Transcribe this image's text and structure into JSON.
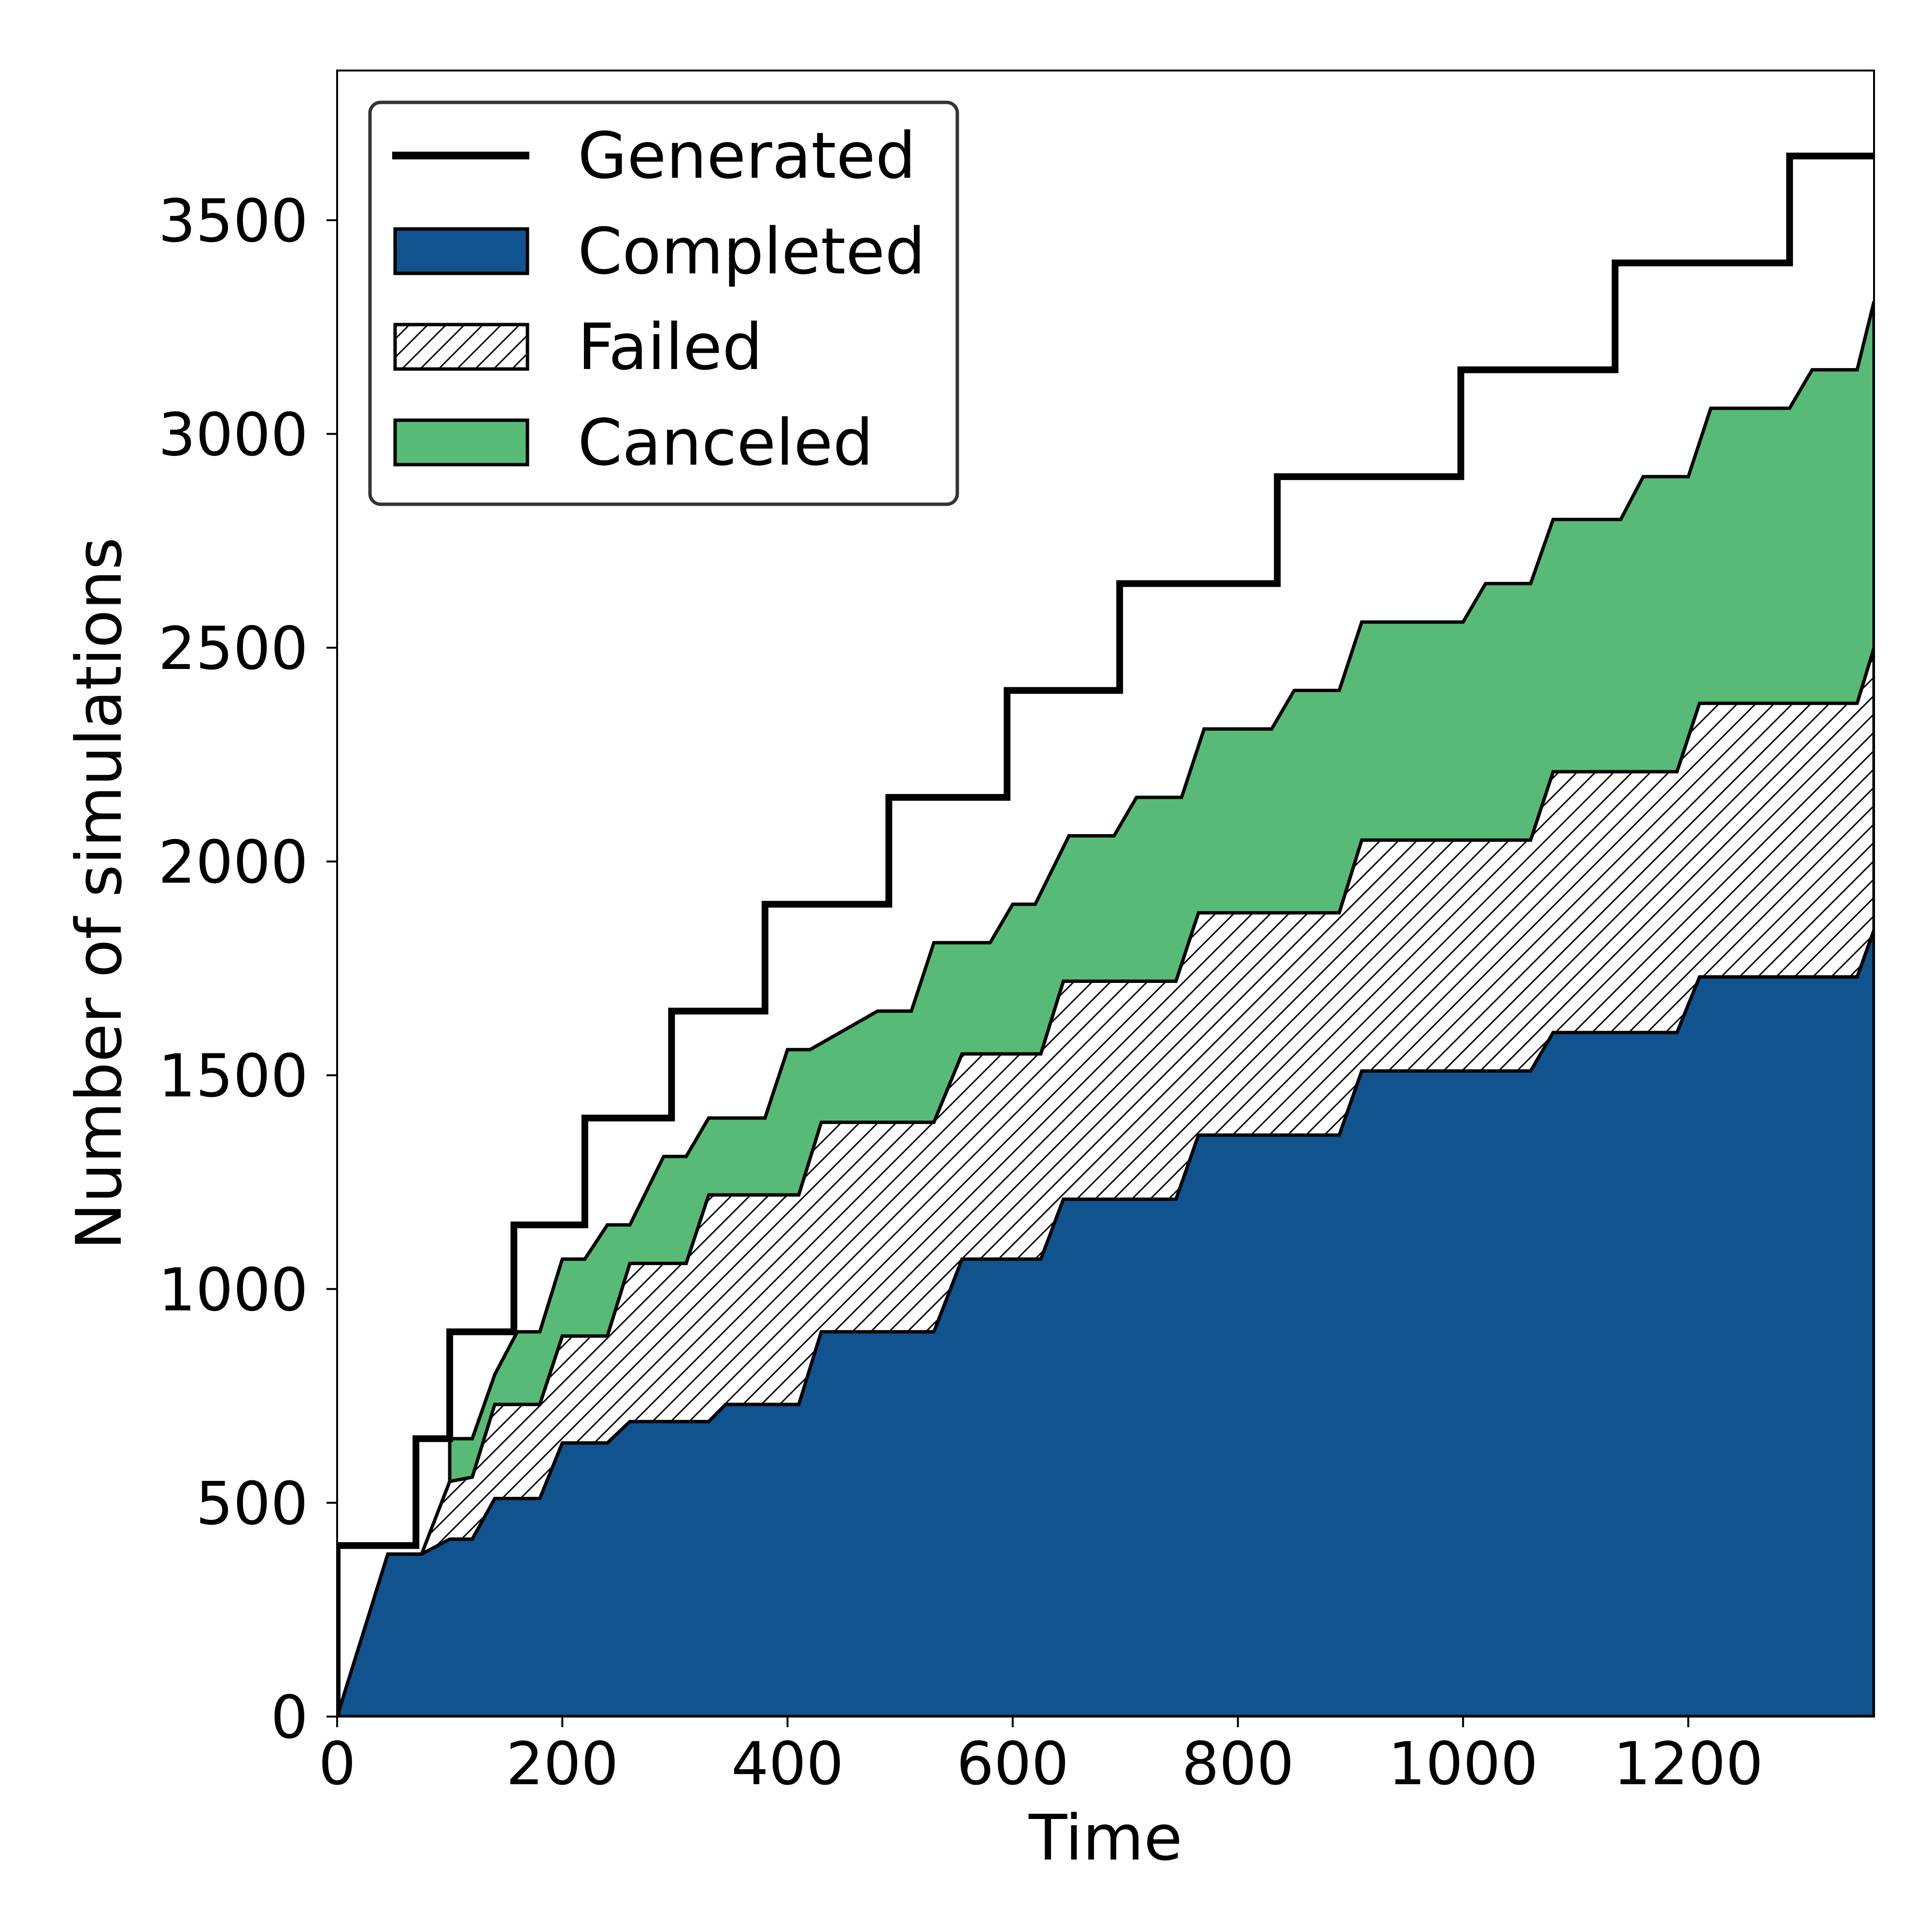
{
  "chart_data": {
    "type": "area",
    "xlabel": "Time",
    "ylabel": "Number of simulations",
    "xlim": [
      0,
      1365
    ],
    "ylim": [
      0,
      3850
    ],
    "xticks": [
      0,
      200,
      400,
      600,
      800,
      1000,
      1200
    ],
    "yticks": [
      0,
      500,
      1000,
      1500,
      2000,
      2500,
      3000,
      3500
    ],
    "grid": false,
    "legend_position": "top-left",
    "colors": {
      "generated": "#000000",
      "completed": "#10538f",
      "failed_hatch": "#000000",
      "canceled": "#57bb77"
    },
    "series": [
      {
        "name": "Generated",
        "style": "step-line",
        "x": [
          0,
          0,
          70,
          70,
          100,
          100,
          157,
          157,
          220,
          220,
          297,
          297,
          380,
          380,
          490,
          490,
          595,
          595,
          695,
          695,
          835,
          835,
          998,
          998,
          1135,
          1135,
          1290,
          1290,
          1365
        ],
        "y": [
          0,
          400,
          400,
          650,
          650,
          900,
          900,
          1150,
          1150,
          1400,
          1400,
          1650,
          1650,
          1900,
          1900,
          2150,
          2150,
          2400,
          2400,
          2650,
          2650,
          2900,
          2900,
          3150,
          3150,
          3400,
          3400,
          3650,
          3650
        ]
      },
      {
        "name": "Completed",
        "style": "stacked-area",
        "x": [
          0,
          45,
          75,
          100,
          120,
          140,
          180,
          200,
          240,
          260,
          330,
          345,
          410,
          430,
          530,
          555,
          625,
          645,
          745,
          765,
          890,
          910,
          1060,
          1080,
          1190,
          1210,
          1350,
          1365
        ],
        "y": [
          0,
          380,
          380,
          415,
          415,
          510,
          510,
          640,
          640,
          690,
          690,
          730,
          730,
          900,
          900,
          1070,
          1070,
          1210,
          1210,
          1360,
          1360,
          1510,
          1510,
          1600,
          1600,
          1730,
          1730,
          1840
        ]
      },
      {
        "name": "Failed",
        "style": "stacked-area-hatched",
        "x": [
          0,
          45,
          75,
          100,
          120,
          140,
          180,
          200,
          240,
          260,
          310,
          330,
          410,
          430,
          530,
          555,
          625,
          645,
          745,
          765,
          890,
          910,
          1060,
          1080,
          1190,
          1210,
          1350,
          1365
        ],
        "y": [
          0,
          380,
          380,
          550,
          560,
          730,
          730,
          890,
          890,
          1060,
          1060,
          1220,
          1220,
          1390,
          1390,
          1550,
          1550,
          1720,
          1720,
          1880,
          1880,
          2050,
          2050,
          2210,
          2210,
          2370,
          2370,
          2500
        ]
      },
      {
        "name": "Canceled",
        "style": "stacked-area",
        "x": [
          100,
          120,
          140,
          160,
          180,
          200,
          220,
          240,
          260,
          290,
          310,
          330,
          380,
          400,
          420,
          480,
          510,
          530,
          580,
          600,
          620,
          650,
          690,
          710,
          750,
          770,
          830,
          850,
          890,
          910,
          1000,
          1020,
          1060,
          1080,
          1140,
          1160,
          1200,
          1220,
          1290,
          1310,
          1350,
          1365
        ],
        "y": [
          650,
          650,
          800,
          900,
          900,
          1070,
          1070,
          1150,
          1150,
          1310,
          1310,
          1400,
          1400,
          1560,
          1560,
          1650,
          1650,
          1810,
          1810,
          1900,
          1900,
          2060,
          2060,
          2150,
          2150,
          2310,
          2310,
          2400,
          2400,
          2560,
          2560,
          2650,
          2650,
          2800,
          2800,
          2900,
          2900,
          3060,
          3060,
          3150,
          3150,
          3310
        ]
      }
    ]
  }
}
